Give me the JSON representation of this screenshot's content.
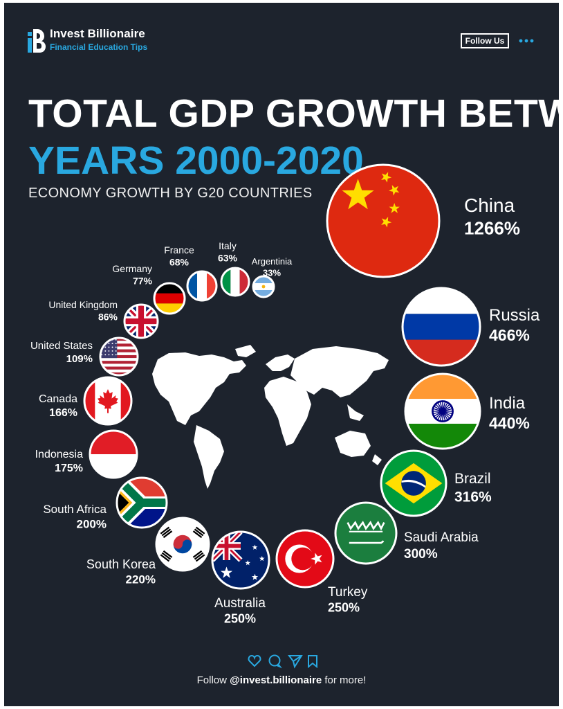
{
  "brand": {
    "name": "Invest Billionaire",
    "tagline": "Financial Education Tips"
  },
  "header": {
    "follow_label": "Follow Us"
  },
  "footer": {
    "prefix": "Follow",
    "handle": "@invest.billionaire",
    "suffix": "for more!"
  },
  "social_icons": [
    "heart-icon",
    "comment-icon",
    "share-icon",
    "bookmark-icon"
  ],
  "colors": {
    "background": "#1d232d",
    "accent": "#29a8e0",
    "text": "#ffffff"
  },
  "chart_data": {
    "type": "bubble",
    "title_line1": "TOTAL GDP GROWTH BETWEEN",
    "title_line2": "YEARS 2000-2020",
    "subtitle": "ECONOMY GROWTH BY G20 COUNTRIES",
    "unit": "%",
    "countries": [
      {
        "name": "China",
        "value": 1266,
        "label": "1266%",
        "flag": "china"
      },
      {
        "name": "Russia",
        "value": 466,
        "label": "466%",
        "flag": "russia"
      },
      {
        "name": "India",
        "value": 440,
        "label": "440%",
        "flag": "india"
      },
      {
        "name": "Brazil",
        "value": 316,
        "label": "316%",
        "flag": "brazil"
      },
      {
        "name": "Saudi Arabia",
        "value": 300,
        "label": "300%",
        "flag": "saudi-arabia"
      },
      {
        "name": "Turkey",
        "value": 250,
        "label": "250%",
        "flag": "turkey"
      },
      {
        "name": "Australia",
        "value": 250,
        "label": "250%",
        "flag": "australia"
      },
      {
        "name": "South Korea",
        "value": 220,
        "label": "220%",
        "flag": "south-korea"
      },
      {
        "name": "South Africa",
        "value": 200,
        "label": "200%",
        "flag": "south-africa"
      },
      {
        "name": "Indonesia",
        "value": 175,
        "label": "175%",
        "flag": "indonesia"
      },
      {
        "name": "Canada",
        "value": 166,
        "label": "166%",
        "flag": "canada"
      },
      {
        "name": "United States",
        "value": 109,
        "label": "109%",
        "flag": "united-states"
      },
      {
        "name": "United Kingdom",
        "value": 86,
        "label": "86%",
        "flag": "united-kingdom"
      },
      {
        "name": "Germany",
        "value": 77,
        "label": "77%",
        "flag": "germany"
      },
      {
        "name": "France",
        "value": 68,
        "label": "68%",
        "flag": "france"
      },
      {
        "name": "Italy",
        "value": 63,
        "label": "63%",
        "flag": "italy"
      },
      {
        "name": "Argentinia",
        "value": 33,
        "label": "33%",
        "flag": "argentina"
      }
    ]
  }
}
